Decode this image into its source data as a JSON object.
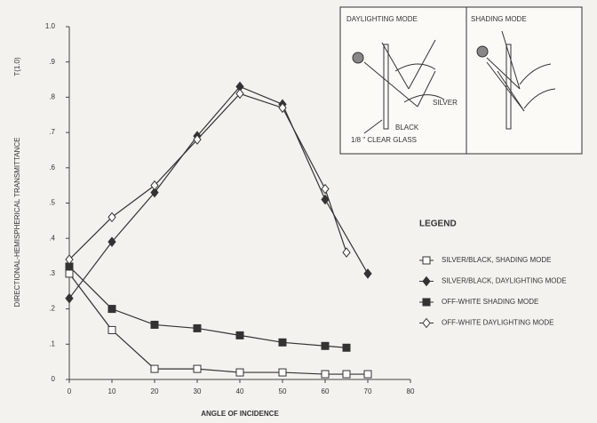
{
  "chart_data": {
    "type": "line",
    "y_label": "DIRECTIONAL-HEMISPHERICAL TRANSMITTANCE",
    "y_label_note": "T(1.0)",
    "x_label": "ANGLE OF INCIDENCE",
    "xlim": [
      0,
      80
    ],
    "xticks": [
      0,
      10,
      20,
      30,
      40,
      50,
      60,
      70,
      80
    ],
    "ylim": [
      0,
      1
    ],
    "yticks": [
      0,
      {
        "value": 0.1,
        "label": ".1"
      },
      {
        "value": 0.2,
        "label": ".2"
      },
      {
        "value": 0.3,
        "label": ".3"
      },
      {
        "value": 0.4,
        "label": ".4"
      },
      {
        "value": 0.5,
        "label": ".5"
      },
      {
        "value": 0.6,
        "label": ".6"
      },
      {
        "value": 0.7,
        "label": ".7"
      },
      {
        "value": 0.8,
        "label": ".8"
      },
      {
        "value": 0.9,
        "label": ".9"
      },
      {
        "value": 1,
        "label": "1.0"
      }
    ],
    "legend_title": "LEGEND",
    "series": [
      {
        "name": "SILVER/BLACK, SHADING MODE",
        "color": "#333333",
        "marker": "open-square",
        "x": [
          0,
          10,
          20,
          30,
          40,
          50,
          60,
          65,
          70
        ],
        "values": [
          0.3,
          0.14,
          0.03,
          0.03,
          0.02,
          0.02,
          0.015,
          0.015,
          0.015
        ]
      },
      {
        "name": "SILVER/BLACK, DAYLIGHTING MODE",
        "color": "#333333",
        "marker": "filled-diamond",
        "x": [
          0,
          10,
          20,
          30,
          40,
          50,
          60,
          70
        ],
        "values": [
          0.23,
          0.39,
          0.53,
          0.69,
          0.83,
          0.78,
          0.51,
          0.3
        ]
      },
      {
        "name": "OFF-WHITE SHADING MODE",
        "color": "#333333",
        "marker": "filled-square",
        "x": [
          0,
          10,
          20,
          30,
          40,
          50,
          60,
          65
        ],
        "values": [
          0.32,
          0.2,
          0.155,
          0.145,
          0.125,
          0.105,
          0.095,
          0.09
        ]
      },
      {
        "name": "OFF-WHITE DAYLIGHTING MODE",
        "color": "#333333",
        "marker": "open-diamond",
        "x": [
          0,
          10,
          20,
          30,
          40,
          50,
          60,
          65
        ],
        "values": [
          0.34,
          0.46,
          0.55,
          0.68,
          0.81,
          0.77,
          0.54,
          0.36
        ]
      }
    ],
    "inset": {
      "panels": [
        "DAYLIGHTING MODE",
        "SHADING MODE"
      ],
      "labels": [
        "SILVER",
        "BLACK",
        "1/8 \" CLEAR GLASS"
      ]
    }
  }
}
